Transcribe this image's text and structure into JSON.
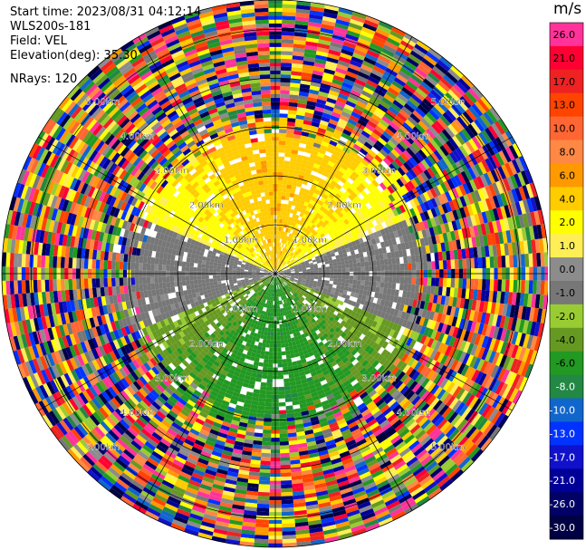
{
  "header": {
    "start_time": "Start time: 2023/08/31 04:12:14",
    "instrument": "WLS200s-181",
    "field": "Field: VEL",
    "elevation": "Elevation(deg): 35.30",
    "nrays": "NRays: 120"
  },
  "chart_data": {
    "type": "heatmap",
    "subtype": "radar-ppi",
    "title": "",
    "field": "VEL",
    "units": "m/s",
    "n_rays": 120,
    "range_rings_km": [
      1.0,
      2.0,
      3.0,
      4.0,
      5.0
    ],
    "range_ring_labels": [
      "1.00km",
      "2.00km",
      "3.00km",
      "4.00km",
      "5.00km"
    ],
    "max_range_km": 5.6,
    "spokes_deg": [
      0,
      30,
      60,
      90,
      120,
      150,
      180,
      210,
      240,
      270,
      300,
      330
    ],
    "pattern": {
      "north_near_field": "positive velocities (+2 to +6 m/s), orange core",
      "south_near_field": "negative velocities (-2 to -6 m/s), green core",
      "east_west_axis": "near zero (0 to -1 m/s), grey",
      "beyond_about_3km": "noisy random velocities spanning full scale"
    },
    "colorbar": {
      "label": "m/s",
      "ticks": [
        "26.0",
        "21.0",
        "17.0",
        "13.0",
        "10.0",
        "8.0",
        "6.0",
        "4.0",
        "2.0",
        "1.0",
        "0.0",
        "-1.0",
        "-2.0",
        "-4.0",
        "-6.0",
        "-8.0",
        "-10.0",
        "-13.0",
        "-17.0",
        "-21.0",
        "-26.0",
        "-30.0"
      ],
      "colors": [
        "#ff3399",
        "#ff0033",
        "#ee2222",
        "#ff4400",
        "#ff6633",
        "#ff8844",
        "#ff9900",
        "#ffcc00",
        "#ffff00",
        "#ffee55",
        "#8c8c8c",
        "#777777",
        "#99cc33",
        "#669922",
        "#229922",
        "#228844",
        "#1166cc",
        "#0033ff",
        "#1111cc",
        "#000099",
        "#000066",
        "#000044"
      ]
    }
  }
}
